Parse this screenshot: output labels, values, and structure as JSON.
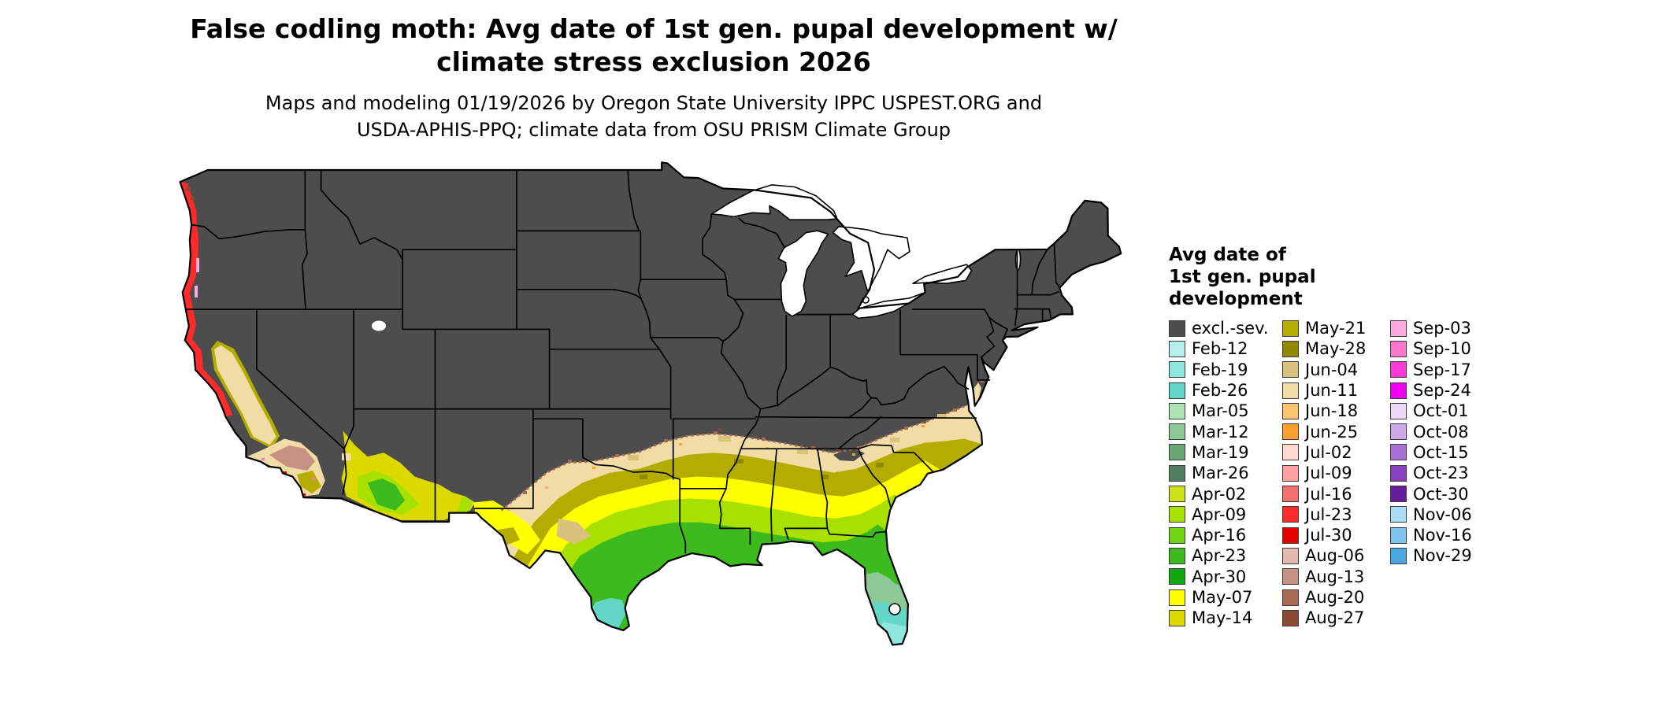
{
  "title": {
    "line1": "False codling moth: Avg date of 1st gen. pupal development w/",
    "line2": "climate stress exclusion 2026"
  },
  "subtitle": {
    "line1": "Maps and modeling 01/19/2026 by Oregon State University IPPC USPEST.ORG and",
    "line2": "USDA-APHIS-PPQ; climate data from OSU PRISM Climate Group"
  },
  "legend": {
    "title_lines": [
      "Avg date of",
      "1st gen. pupal",
      "development"
    ],
    "columns": [
      [
        {
          "label": "excl.-sev.",
          "color": "#4d4d4d"
        },
        {
          "label": "Feb-12",
          "color": "#b7f0ea"
        },
        {
          "label": "Feb-19",
          "color": "#8ee6dd"
        },
        {
          "label": "Feb-26",
          "color": "#63d6c8"
        },
        {
          "label": "Mar-05",
          "color": "#aee3b4"
        },
        {
          "label": "Mar-12",
          "color": "#8cc996"
        },
        {
          "label": "Mar-19",
          "color": "#69a874"
        },
        {
          "label": "Mar-26",
          "color": "#4f7f5e"
        },
        {
          "label": "Apr-02",
          "color": "#cde317"
        },
        {
          "label": "Apr-09",
          "color": "#a8e000"
        },
        {
          "label": "Apr-16",
          "color": "#70d414"
        },
        {
          "label": "Apr-23",
          "color": "#3dbb1e"
        },
        {
          "label": "Apr-30",
          "color": "#12a612"
        },
        {
          "label": "May-07",
          "color": "#ffff00"
        },
        {
          "label": "May-14",
          "color": "#dcd900"
        }
      ],
      [
        {
          "label": "May-21",
          "color": "#b4ad00"
        },
        {
          "label": "May-28",
          "color": "#918a00"
        },
        {
          "label": "Jun-04",
          "color": "#d9c27d"
        },
        {
          "label": "Jun-11",
          "color": "#f2dca6"
        },
        {
          "label": "Jun-18",
          "color": "#ffc46e"
        },
        {
          "label": "Jun-25",
          "color": "#ffa02e"
        },
        {
          "label": "Jul-02",
          "color": "#ffd9cf"
        },
        {
          "label": "Jul-09",
          "color": "#ff9f9f"
        },
        {
          "label": "Jul-16",
          "color": "#f56f6f"
        },
        {
          "label": "Jul-23",
          "color": "#ff2a2a"
        },
        {
          "label": "Jul-30",
          "color": "#e60000"
        },
        {
          "label": "Aug-06",
          "color": "#e3b8ae"
        },
        {
          "label": "Aug-13",
          "color": "#c59183"
        },
        {
          "label": "Aug-20",
          "color": "#a96a54"
        },
        {
          "label": "Aug-27",
          "color": "#8c4a33"
        }
      ],
      [
        {
          "label": "Sep-03",
          "color": "#ffaadd"
        },
        {
          "label": "Sep-10",
          "color": "#ff77cc"
        },
        {
          "label": "Sep-17",
          "color": "#ff3ad6"
        },
        {
          "label": "Sep-24",
          "color": "#f000f0"
        },
        {
          "label": "Oct-01",
          "color": "#ecd9f7"
        },
        {
          "label": "Oct-08",
          "color": "#cfa8ec"
        },
        {
          "label": "Oct-15",
          "color": "#a96fd4"
        },
        {
          "label": "Oct-23",
          "color": "#8a3fbf"
        },
        {
          "label": "Oct-30",
          "color": "#641e9c"
        },
        {
          "label": "Nov-06",
          "color": "#aadcf5"
        },
        {
          "label": "Nov-16",
          "color": "#7cc4ee"
        },
        {
          "label": "Nov-29",
          "color": "#4aa8e0"
        }
      ]
    ]
  },
  "map": {
    "base_label": "excl.-sev.",
    "water_color": "#ffffff",
    "border_color": "#000000"
  }
}
